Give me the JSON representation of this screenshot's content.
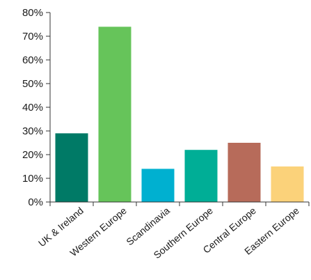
{
  "chart_data": {
    "type": "bar",
    "categories": [
      "UK & Ireland",
      "Western Europe",
      "Scandinavia",
      "Southern Europe",
      "Central Europe",
      "Eastern Europe"
    ],
    "values": [
      29,
      74,
      14,
      22,
      25,
      15
    ],
    "colors": [
      "#007a66",
      "#66c45a",
      "#00b0d0",
      "#00ae96",
      "#b76b5a",
      "#fbd27a"
    ],
    "yticks": [
      "0%",
      "10%",
      "20%",
      "30%",
      "40%",
      "50%",
      "60%",
      "70%",
      "80%"
    ],
    "ylim": [
      0,
      80
    ],
    "title": "",
    "xlabel": "",
    "ylabel": "",
    "grid": false,
    "legend": false
  }
}
